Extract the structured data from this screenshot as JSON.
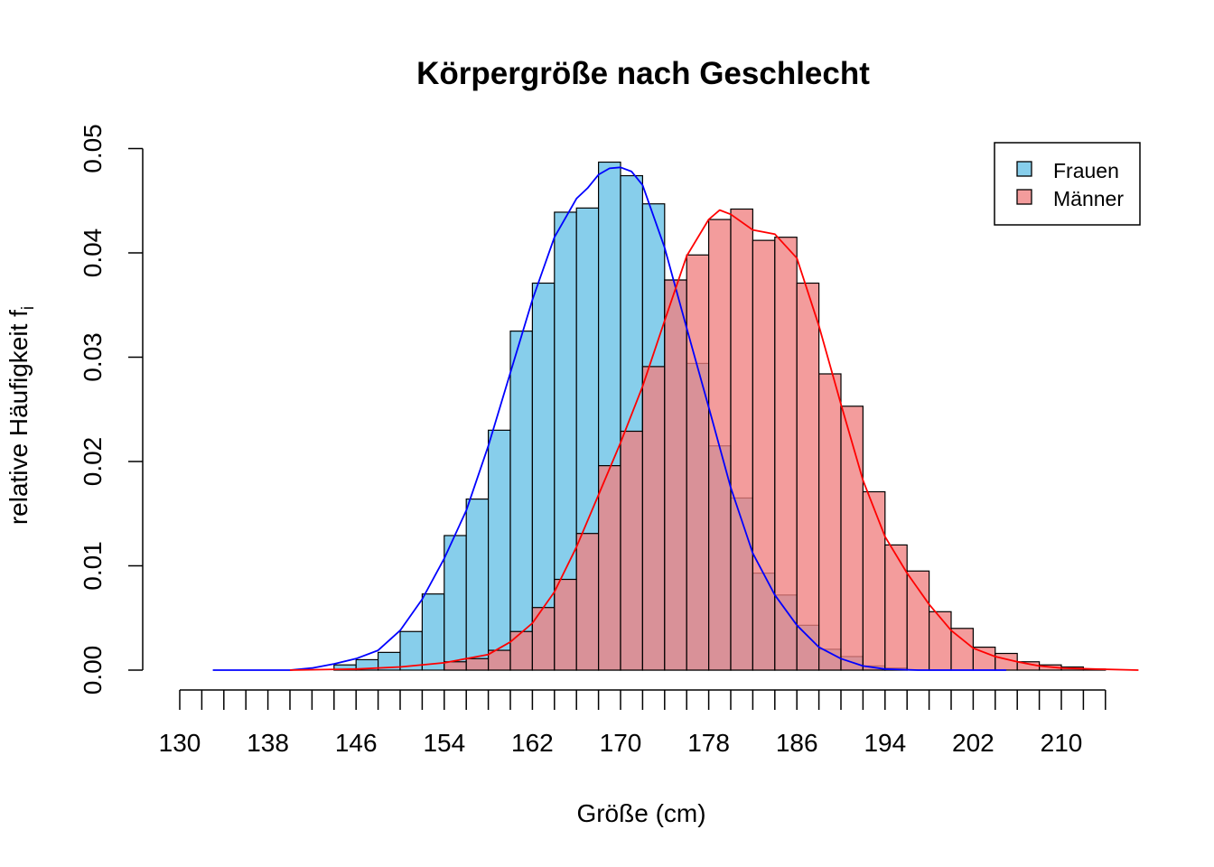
{
  "chart_data": {
    "type": "bar",
    "title": "Körpergröße nach Geschlecht",
    "xlabel": "Größe (cm)",
    "ylabel": "relative Häufigkeit f",
    "ylabel_subscript": "i",
    "xlim": [
      130,
      214
    ],
    "ylim": [
      0,
      0.05
    ],
    "bin_width": 2,
    "x_ticks": [
      130,
      138,
      146,
      154,
      162,
      170,
      178,
      186,
      194,
      202,
      210
    ],
    "y_ticks": [
      "0.00",
      "0.01",
      "0.02",
      "0.03",
      "0.04",
      "0.05"
    ],
    "legend": {
      "position": "top-right",
      "entries": [
        "Frauen",
        "Männer"
      ]
    },
    "series": [
      {
        "name": "Frauen",
        "fill": "#87CEEB",
        "line_color": "#0000FF",
        "bins": [
          [
            130,
            0.0
          ],
          [
            144,
            0.0005
          ],
          [
            146,
            0.001
          ],
          [
            148,
            0.0017
          ],
          [
            150,
            0.0037
          ],
          [
            152,
            0.0073
          ],
          [
            154,
            0.0129
          ],
          [
            156,
            0.0164
          ],
          [
            158,
            0.023
          ],
          [
            160,
            0.0325
          ],
          [
            162,
            0.0371
          ],
          [
            164,
            0.0439
          ],
          [
            166,
            0.0443
          ],
          [
            168,
            0.0487
          ],
          [
            170,
            0.0474
          ],
          [
            172,
            0.0447
          ],
          [
            174,
            0.0374
          ],
          [
            176,
            0.0294
          ],
          [
            178,
            0.0215
          ],
          [
            180,
            0.0165
          ],
          [
            182,
            0.0093
          ],
          [
            184,
            0.0072
          ],
          [
            186,
            0.0043
          ],
          [
            188,
            0.002
          ],
          [
            190,
            0.0013
          ],
          [
            192,
            0.0004
          ],
          [
            194,
            0.0002
          ]
        ],
        "density": [
          [
            133,
            0.0
          ],
          [
            140,
            0.0
          ],
          [
            142,
            0.0002
          ],
          [
            144,
            0.0006
          ],
          [
            146,
            0.0011
          ],
          [
            148,
            0.0019
          ],
          [
            150,
            0.0038
          ],
          [
            152,
            0.0068
          ],
          [
            154,
            0.0107
          ],
          [
            156,
            0.0153
          ],
          [
            158,
            0.0215
          ],
          [
            160,
            0.0285
          ],
          [
            162,
            0.0355
          ],
          [
            164,
            0.0415
          ],
          [
            166,
            0.0452
          ],
          [
            167,
            0.0462
          ],
          [
            168,
            0.0475
          ],
          [
            169,
            0.0481
          ],
          [
            170,
            0.0482
          ],
          [
            171,
            0.0478
          ],
          [
            172,
            0.0465
          ],
          [
            174,
            0.0405
          ],
          [
            176,
            0.0328
          ],
          [
            178,
            0.0252
          ],
          [
            180,
            0.0175
          ],
          [
            182,
            0.0112
          ],
          [
            184,
            0.0072
          ],
          [
            186,
            0.0043
          ],
          [
            188,
            0.0022
          ],
          [
            190,
            0.0011
          ],
          [
            192,
            0.0004
          ],
          [
            194,
            0.0001
          ],
          [
            197,
            0.0
          ],
          [
            205,
            0.0
          ]
        ]
      },
      {
        "name": "Männer",
        "fill": "#F08080",
        "line_color": "#FF0000",
        "bins": [
          [
            130,
            0.0
          ],
          [
            154,
            0.0008
          ],
          [
            156,
            0.0011
          ],
          [
            158,
            0.0019
          ],
          [
            160,
            0.0037
          ],
          [
            162,
            0.006
          ],
          [
            164,
            0.0087
          ],
          [
            166,
            0.0131
          ],
          [
            168,
            0.0196
          ],
          [
            170,
            0.0229
          ],
          [
            172,
            0.0291
          ],
          [
            174,
            0.0374
          ],
          [
            176,
            0.0398
          ],
          [
            178,
            0.0432
          ],
          [
            180,
            0.0442
          ],
          [
            182,
            0.0412
          ],
          [
            184,
            0.0415
          ],
          [
            186,
            0.0371
          ],
          [
            188,
            0.0284
          ],
          [
            190,
            0.0253
          ],
          [
            192,
            0.0171
          ],
          [
            194,
            0.012
          ],
          [
            196,
            0.0095
          ],
          [
            198,
            0.0056
          ],
          [
            200,
            0.004
          ],
          [
            202,
            0.0022
          ],
          [
            204,
            0.0016
          ],
          [
            206,
            0.0008
          ],
          [
            208,
            0.0005
          ],
          [
            210,
            0.0003
          ],
          [
            212,
            0.0001
          ]
        ],
        "density": [
          [
            140,
            0.0
          ],
          [
            146,
            0.0001
          ],
          [
            150,
            0.0003
          ],
          [
            154,
            0.0007
          ],
          [
            158,
            0.0015
          ],
          [
            160,
            0.0027
          ],
          [
            162,
            0.0045
          ],
          [
            164,
            0.0075
          ],
          [
            166,
            0.0118
          ],
          [
            168,
            0.0168
          ],
          [
            170,
            0.0218
          ],
          [
            172,
            0.0272
          ],
          [
            174,
            0.0335
          ],
          [
            176,
            0.0397
          ],
          [
            178,
            0.0432
          ],
          [
            179,
            0.0441
          ],
          [
            180,
            0.0437
          ],
          [
            182,
            0.0422
          ],
          [
            184,
            0.0418
          ],
          [
            186,
            0.0395
          ],
          [
            188,
            0.033
          ],
          [
            190,
            0.0255
          ],
          [
            192,
            0.0182
          ],
          [
            194,
            0.0128
          ],
          [
            196,
            0.0093
          ],
          [
            198,
            0.0063
          ],
          [
            200,
            0.0038
          ],
          [
            202,
            0.0021
          ],
          [
            204,
            0.0013
          ],
          [
            206,
            0.0008
          ],
          [
            208,
            0.0004
          ],
          [
            210,
            0.0002
          ],
          [
            213,
            0.0001
          ],
          [
            217,
            0.0
          ]
        ]
      }
    ]
  }
}
